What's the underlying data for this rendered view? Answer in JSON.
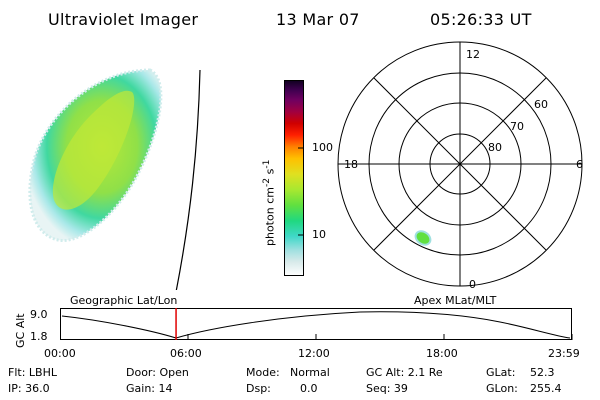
{
  "header": {
    "title": "Ultraviolet Imager",
    "date": "13 Mar 07",
    "time": "05:26:33 UT"
  },
  "colorbar": {
    "unit_label": "photon cm",
    "unit_sup1": "-2",
    "unit_mid": "s",
    "unit_sup2": "-1",
    "ticks": [
      "100",
      "10"
    ],
    "stops": [
      "#ffffff",
      "#d8eaea",
      "#a0e0e0",
      "#40d8c8",
      "#20d880",
      "#60e040",
      "#a8e830",
      "#e0e020",
      "#ffc000",
      "#ff8000",
      "#ff2000",
      "#d00000",
      "#a00040",
      "#700060",
      "#400050",
      "#100020"
    ]
  },
  "polar": {
    "mlt_labels": {
      "top": "12",
      "left": "18",
      "right": "6",
      "bottom": "0"
    },
    "lat_labels": [
      "60",
      "70",
      "80"
    ]
  },
  "timeline": {
    "left_label": "Geographic Lat/Lon",
    "right_label": "Apex MLat/MLT",
    "y_axis_label": "GC Alt",
    "y_max": "9.0",
    "y_min": "1.8",
    "x_ticks": [
      "00:00",
      "06:00",
      "12:00",
      "18:00",
      "23:59"
    ],
    "marker_time_hours": 5.44
  },
  "info": {
    "row1": {
      "flt": "Flt: LBHL",
      "door": "Door: Open",
      "mode_label": "Mode:",
      "mode_value": "Normal",
      "gcalt": "GC Alt: 2.1 Re",
      "glat_label": "GLat:",
      "glat_value": "52.3"
    },
    "row2": {
      "ip": "IP: 36.0",
      "gain": "Gain: 14",
      "dsp_label": "Dsp:",
      "dsp_value": "0.0",
      "seq": "Seq: 39",
      "glon_label": "GLon:",
      "glon_value": "255.4"
    }
  },
  "colors": {
    "marker": "#e00000",
    "ink": "#000000"
  }
}
